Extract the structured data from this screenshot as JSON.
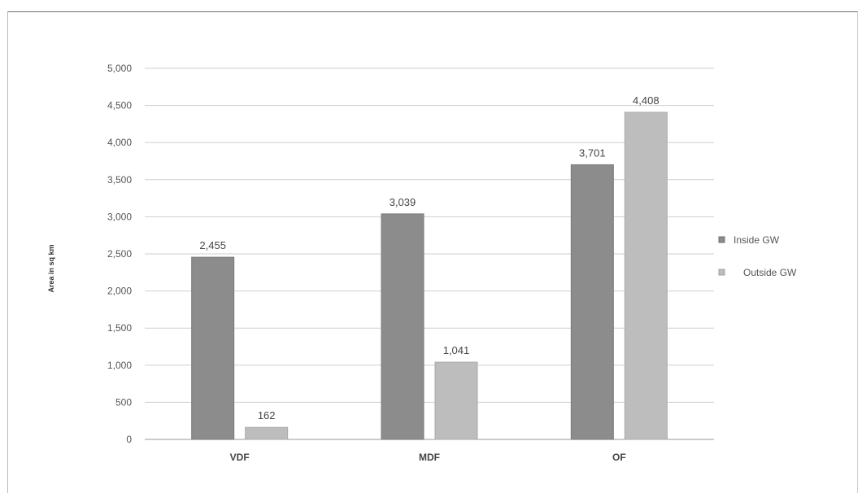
{
  "chart_data": {
    "type": "bar",
    "title": "",
    "xlabel": "",
    "ylabel": "Area in sq km",
    "categories": [
      "VDF",
      "MDF",
      "OF"
    ],
    "series": [
      {
        "name": "Inside GW",
        "values": [
          2455,
          3039,
          3701
        ],
        "labels": [
          "2,455",
          "3,039",
          "3,701"
        ],
        "color": "#8c8c8c"
      },
      {
        "name": "Outside GW",
        "values": [
          162,
          1041,
          4408
        ],
        "labels": [
          "162",
          "1,041",
          "4,408"
        ],
        "color": "#bdbdbd"
      }
    ],
    "ylim": [
      0,
      5000
    ],
    "yticks": [
      0,
      500,
      1000,
      1500,
      2000,
      2500,
      3000,
      3500,
      4000,
      4500,
      5000
    ],
    "ytick_labels": [
      "0",
      "500",
      "1,000",
      "1,500",
      "2,000",
      "2,500",
      "3,000",
      "3,500",
      "4,000",
      "4,500",
      "5,000"
    ],
    "grid": true,
    "legend_position": "right"
  }
}
